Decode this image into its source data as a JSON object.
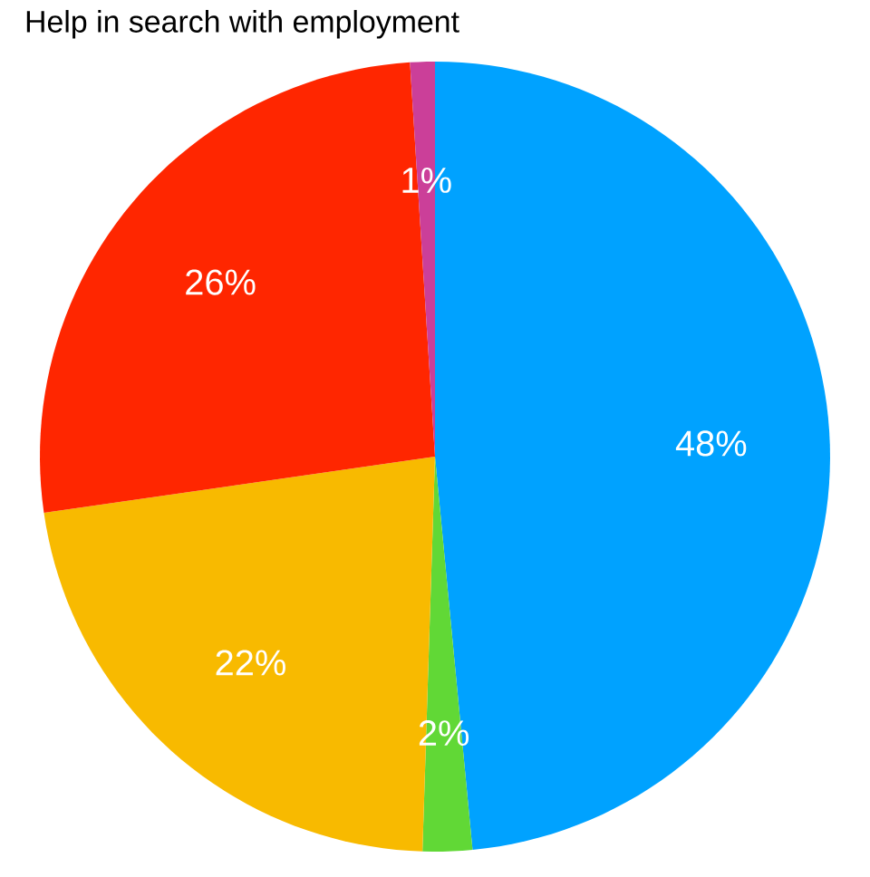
{
  "chart_data": {
    "type": "pie",
    "title": "Help in search with employment",
    "categories": [
      null,
      null,
      null,
      null,
      null
    ],
    "values": [
      48,
      2,
      22,
      26,
      1
    ],
    "colors": [
      "#00a2ff",
      "#61d836",
      "#f8ba00",
      "#ff2600",
      "#cb3f99"
    ],
    "value_labels": [
      "48%",
      "2%",
      "22%",
      "26%",
      "1%"
    ]
  }
}
